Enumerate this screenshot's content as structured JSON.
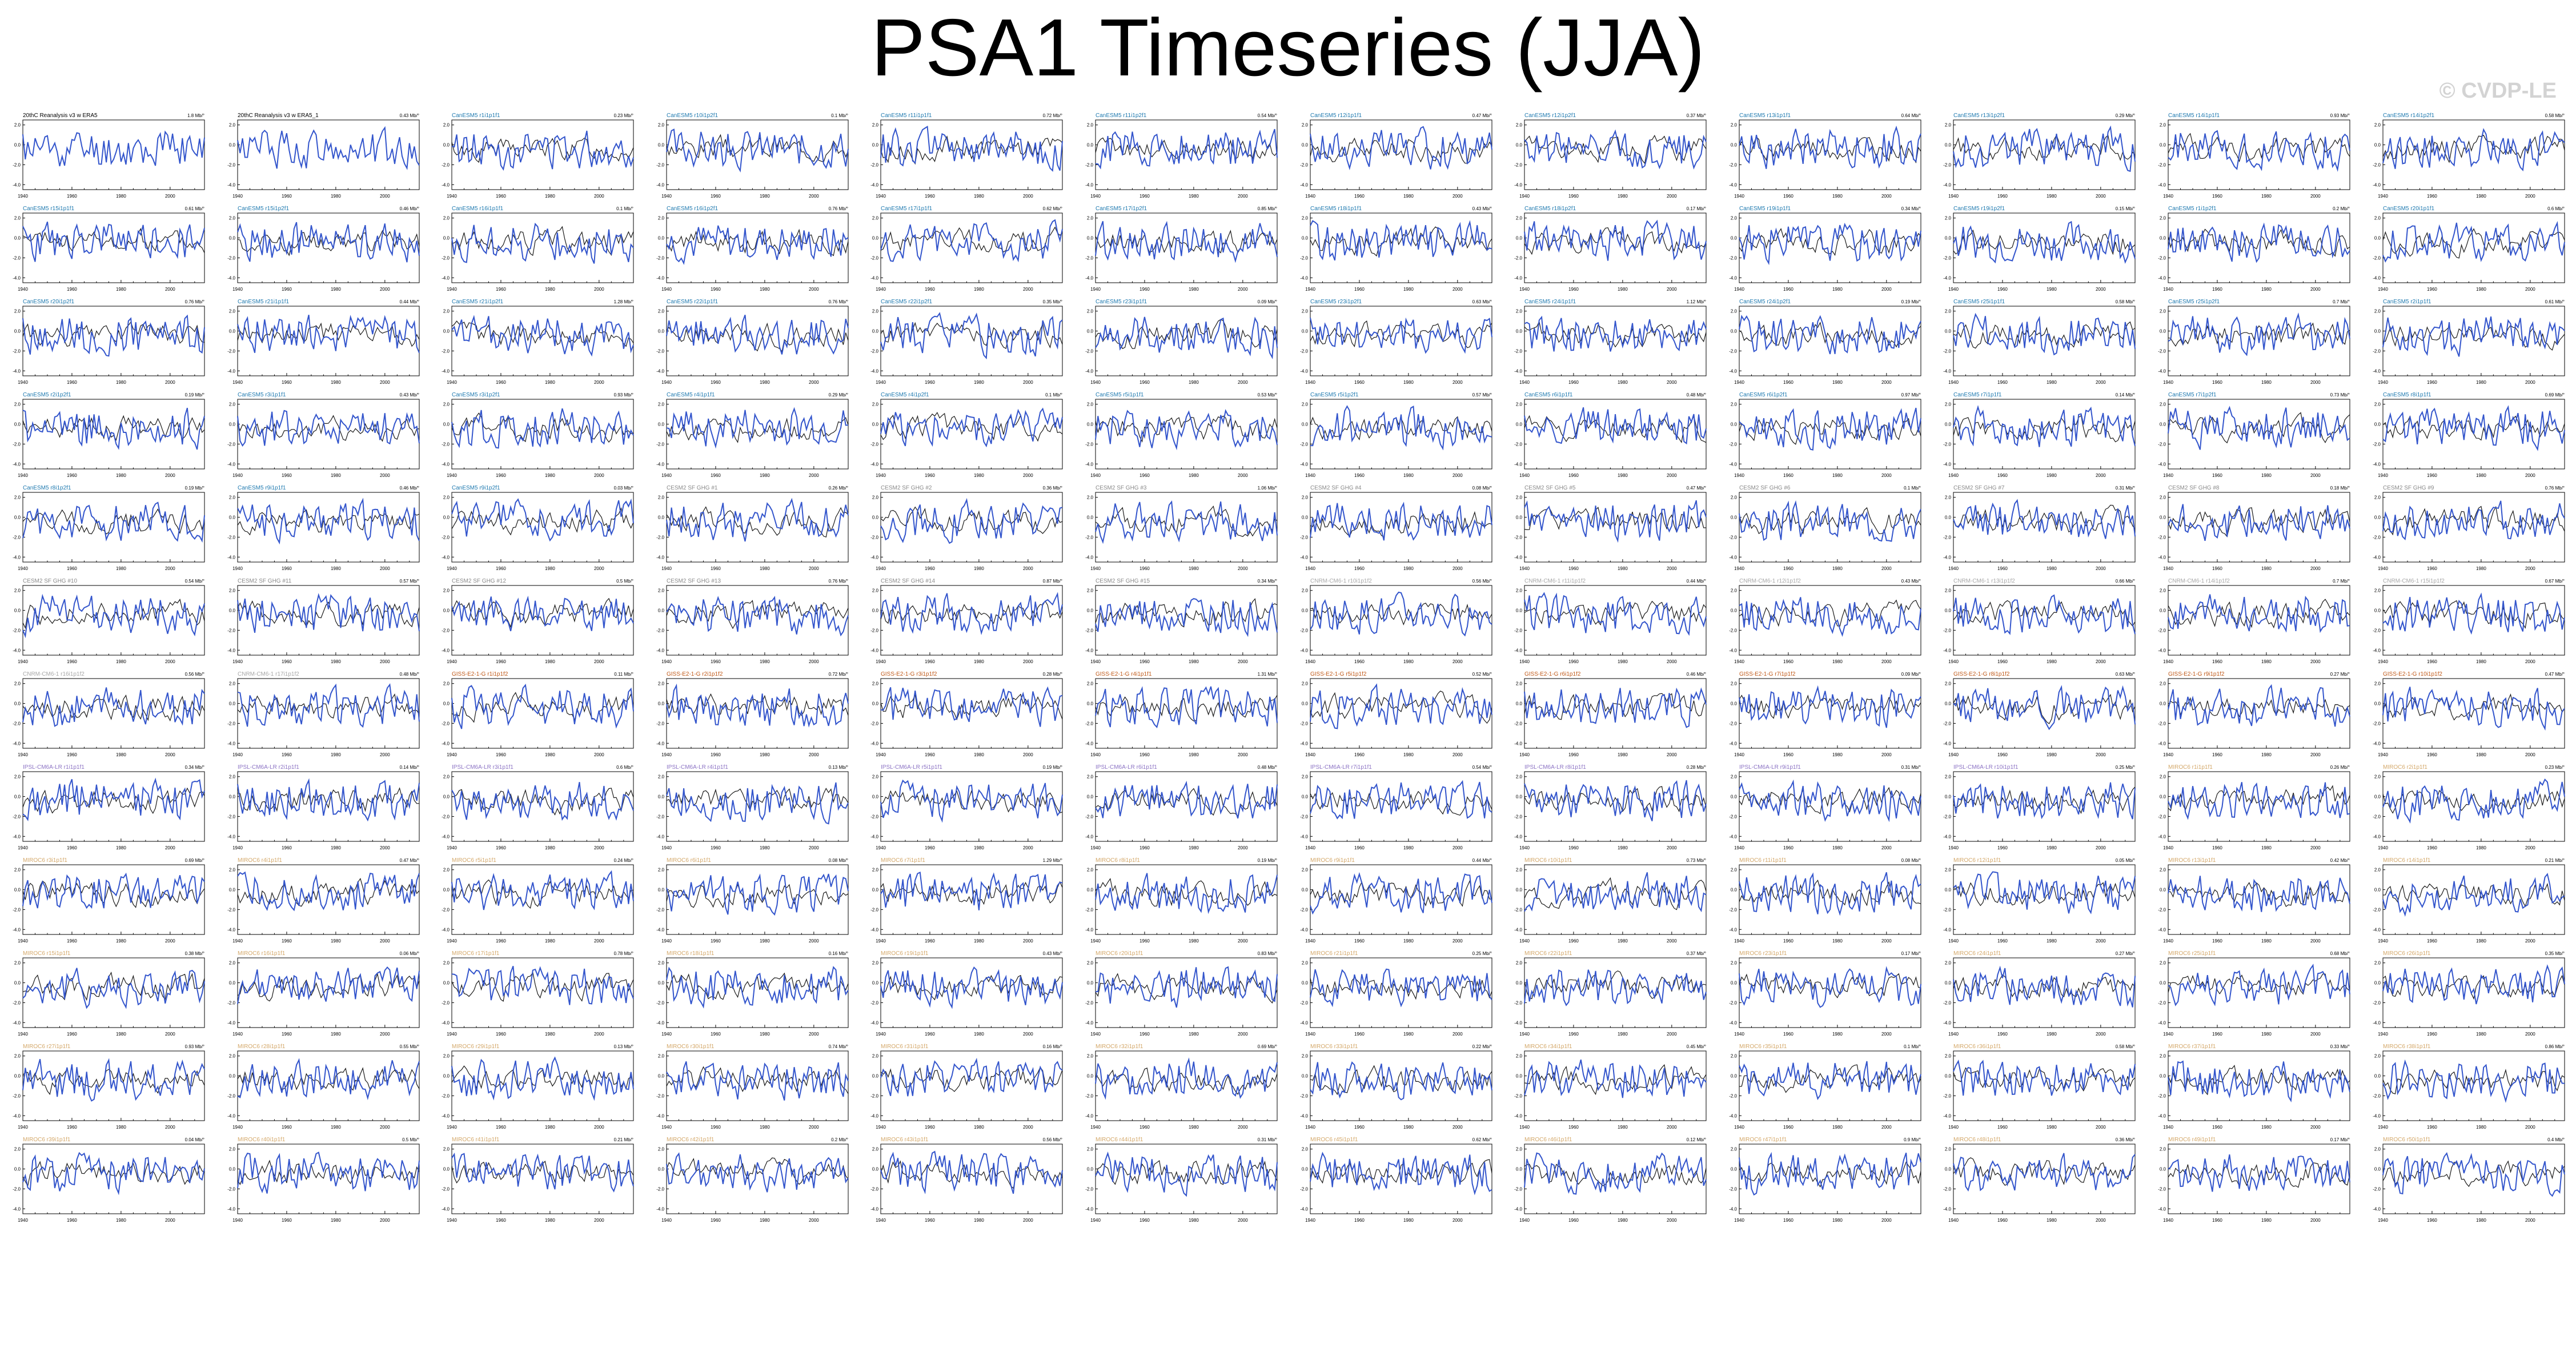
{
  "title": "PSA1 Timeseries (JJA)",
  "watermark": "© CVDP-LE",
  "colors": {
    "model_line": "#3355cc",
    "obs_line": "#1a1a1a",
    "obs_title": "#000000",
    "CanESM5": "#1f7ab0",
    "CESM2-SF-GHG": "#8a8a8a",
    "CNRM-CM6-1": "#a8a8a8",
    "GISS-E2-1-G": "#c05a1a",
    "IPSL-CM6A-LR": "#8c73c4",
    "MIROC6": "#d4a86a"
  },
  "chart_data": {
    "type": "line",
    "layout": {
      "rows": 13,
      "columns": 12,
      "last_row_columns": [
        5,
        6
      ]
    },
    "x_ticks": [
      1940,
      1960,
      1980,
      2000
    ],
    "y_ticks": [
      2.0,
      0.0,
      -2.0,
      -4.0
    ],
    "xlim": [
      1940,
      2014
    ],
    "ylim": [
      -4.5,
      2.5
    ],
    "series_legend": [
      {
        "name": "",
        "color": "#3355cc"
      },
      {
        "name": "",
        "color": "#1a1a1a"
      }
    ],
    "panels": [
      {
        "title": "20thC Reanalysis v3 w ERA5",
        "trend": "1.8 Mb/°",
        "group": "obs"
      },
      {
        "title": "20thC Reanalysis v3 w ERA5_1",
        "trend": "0.43 Mb/°",
        "group": "obs"
      },
      {
        "title": "CanESM5 r1i1p1f1",
        "trend": "0.23 Mb/°",
        "group": "CanESM5"
      },
      {
        "title": "CanESM5 r10i1p2f1",
        "trend": "0.1 Mb/°",
        "group": "CanESM5"
      },
      {
        "title": "CanESM5 r11i1p1f1",
        "trend": "0.72 Mb/°",
        "group": "CanESM5"
      },
      {
        "title": "CanESM5 r11i1p2f1",
        "trend": "0.54 Mb/°",
        "group": "CanESM5"
      },
      {
        "title": "CanESM5 r12i1p1f1",
        "trend": "0.47 Mb/°",
        "group": "CanESM5"
      },
      {
        "title": "CanESM5 r12i1p2f1",
        "trend": "0.37 Mb/°",
        "group": "CanESM5"
      },
      {
        "title": "CanESM5 r13i1p1f1",
        "trend": "0.64 Mb/°",
        "group": "CanESM5"
      },
      {
        "title": "CanESM5 r13i1p2f1",
        "trend": "0.29 Mb/°",
        "group": "CanESM5"
      },
      {
        "title": "CanESM5 r14i1p1f1",
        "trend": "0.93 Mb/°",
        "group": "CanESM5"
      },
      {
        "title": "CanESM5 r14i1p2f1",
        "trend": "0.58 Mb/°",
        "group": "CanESM5"
      },
      {
        "title": "CanESM5 r15i1p1f1",
        "trend": "0.61 Mb/°",
        "group": "CanESM5"
      },
      {
        "title": "CanESM5 r15i1p2f1",
        "trend": "0.46 Mb/°",
        "group": "CanESM5"
      },
      {
        "title": "CanESM5 r16i1p1f1",
        "trend": "0.1 Mb/°",
        "group": "CanESM5"
      },
      {
        "title": "CanESM5 r16i1p2f1",
        "trend": "0.76 Mb/°",
        "group": "CanESM5"
      },
      {
        "title": "CanESM5 r17i1p1f1",
        "trend": "0.62 Mb/°",
        "group": "CanESM5"
      },
      {
        "title": "CanESM5 r17i1p2f1",
        "trend": "0.85 Mb/°",
        "group": "CanESM5"
      },
      {
        "title": "CanESM5 r18i1p1f1",
        "trend": "0.43 Mb/°",
        "group": "CanESM5"
      },
      {
        "title": "CanESM5 r18i1p2f1",
        "trend": "0.17 Mb/°",
        "group": "CanESM5"
      },
      {
        "title": "CanESM5 r19i1p1f1",
        "trend": "0.34 Mb/°",
        "group": "CanESM5"
      },
      {
        "title": "CanESM5 r19i1p2f1",
        "trend": "0.15 Mb/°",
        "group": "CanESM5"
      },
      {
        "title": "CanESM5 r1i1p2f1",
        "trend": "0.2 Mb/°",
        "group": "CanESM5"
      },
      {
        "title": "CanESM5 r20i1p1f1",
        "trend": "0.6 Mb/°",
        "group": "CanESM5"
      },
      {
        "title": "CanESM5 r20i1p2f1",
        "trend": "0.76 Mb/°",
        "group": "CanESM5"
      },
      {
        "title": "CanESM5 r21i1p1f1",
        "trend": "0.44 Mb/°",
        "group": "CanESM5"
      },
      {
        "title": "CanESM5 r21i1p2f1",
        "trend": "1.28 Mb/°",
        "group": "CanESM5"
      },
      {
        "title": "CanESM5 r22i1p1f1",
        "trend": "0.76 Mb/°",
        "group": "CanESM5"
      },
      {
        "title": "CanESM5 r22i1p2f1",
        "trend": "0.35 Mb/°",
        "group": "CanESM5"
      },
      {
        "title": "CanESM5 r23i1p1f1",
        "trend": "0.09 Mb/°",
        "group": "CanESM5"
      },
      {
        "title": "CanESM5 r23i1p2f1",
        "trend": "0.63 Mb/°",
        "group": "CanESM5"
      },
      {
        "title": "CanESM5 r24i1p1f1",
        "trend": "1.12 Mb/°",
        "group": "CanESM5"
      },
      {
        "title": "CanESM5 r24i1p2f1",
        "trend": "0.19 Mb/°",
        "group": "CanESM5"
      },
      {
        "title": "CanESM5 r25i1p1f1",
        "trend": "0.58 Mb/°",
        "group": "CanESM5"
      },
      {
        "title": "CanESM5 r25i1p2f1",
        "trend": "0.7 Mb/°",
        "group": "CanESM5"
      },
      {
        "title": "CanESM5 r2i1p1f1",
        "trend": "0.61 Mb/°",
        "group": "CanESM5"
      },
      {
        "title": "CanESM5 r2i1p2f1",
        "trend": "0.19 Mb/°",
        "group": "CanESM5"
      },
      {
        "title": "CanESM5 r3i1p1f1",
        "trend": "0.43 Mb/°",
        "group": "CanESM5"
      },
      {
        "title": "CanESM5 r3i1p2f1",
        "trend": "0.93 Mb/°",
        "group": "CanESM5"
      },
      {
        "title": "CanESM5 r4i1p1f1",
        "trend": "0.29 Mb/°",
        "group": "CanESM5"
      },
      {
        "title": "CanESM5 r4i1p2f1",
        "trend": "0.1 Mb/°",
        "group": "CanESM5"
      },
      {
        "title": "CanESM5 r5i1p1f1",
        "trend": "0.53 Mb/°",
        "group": "CanESM5"
      },
      {
        "title": "CanESM5 r5i1p2f1",
        "trend": "0.57 Mb/°",
        "group": "CanESM5"
      },
      {
        "title": "CanESM5 r6i1p1f1",
        "trend": "0.48 Mb/°",
        "group": "CanESM5"
      },
      {
        "title": "CanESM5 r6i1p2f1",
        "trend": "0.97 Mb/°",
        "group": "CanESM5"
      },
      {
        "title": "CanESM5 r7i1p1f1",
        "trend": "0.14 Mb/°",
        "group": "CanESM5"
      },
      {
        "title": "CanESM5 r7i1p2f1",
        "trend": "0.73 Mb/°",
        "group": "CanESM5"
      },
      {
        "title": "CanESM5 r8i1p1f1",
        "trend": "0.69 Mb/°",
        "group": "CanESM5"
      },
      {
        "title": "CanESM5 r8i1p2f1",
        "trend": "0.19 Mb/°",
        "group": "CanESM5"
      },
      {
        "title": "CanESM5 r9i1p1f1",
        "trend": "0.46 Mb/°",
        "group": "CanESM5"
      },
      {
        "title": "CanESM5 r9i1p2f1",
        "trend": "0.03 Mb/°",
        "group": "CanESM5"
      },
      {
        "title": "CESM2 SF GHG #1",
        "trend": "0.26 Mb/°",
        "group": "CESM2-SF-GHG"
      },
      {
        "title": "CESM2 SF GHG #2",
        "trend": "0.36 Mb/°",
        "group": "CESM2-SF-GHG"
      },
      {
        "title": "CESM2 SF GHG #3",
        "trend": "1.06 Mb/°",
        "group": "CESM2-SF-GHG"
      },
      {
        "title": "CESM2 SF GHG #4",
        "trend": "0.08 Mb/°",
        "group": "CESM2-SF-GHG"
      },
      {
        "title": "CESM2 SF GHG #5",
        "trend": "0.47 Mb/°",
        "group": "CESM2-SF-GHG"
      },
      {
        "title": "CESM2 SF GHG #6",
        "trend": "0.1 Mb/°",
        "group": "CESM2-SF-GHG"
      },
      {
        "title": "CESM2 SF GHG #7",
        "trend": "0.31 Mb/°",
        "group": "CESM2-SF-GHG"
      },
      {
        "title": "CESM2 SF GHG #8",
        "trend": "0.18 Mb/°",
        "group": "CESM2-SF-GHG"
      },
      {
        "title": "CESM2 SF GHG #9",
        "trend": "0.76 Mb/°",
        "group": "CESM2-SF-GHG"
      },
      {
        "title": "CESM2 SF GHG #10",
        "trend": "0.54 Mb/°",
        "group": "CESM2-SF-GHG"
      },
      {
        "title": "CESM2 SF GHG #11",
        "trend": "0.57 Mb/°",
        "group": "CESM2-SF-GHG"
      },
      {
        "title": "CESM2 SF GHG #12",
        "trend": "0.5 Mb/°",
        "group": "CESM2-SF-GHG"
      },
      {
        "title": "CESM2 SF GHG #13",
        "trend": "0.76 Mb/°",
        "group": "CESM2-SF-GHG"
      },
      {
        "title": "CESM2 SF GHG #14",
        "trend": "0.87 Mb/°",
        "group": "CESM2-SF-GHG"
      },
      {
        "title": "CESM2 SF GHG #15",
        "trend": "0.34 Mb/°",
        "group": "CESM2-SF-GHG"
      },
      {
        "title": "CNRM-CM6-1 r10i1p1f2",
        "trend": "0.56 Mb/°",
        "group": "CNRM-CM6-1"
      },
      {
        "title": "CNRM-CM6-1 r11i1p1f2",
        "trend": "0.44 Mb/°",
        "group": "CNRM-CM6-1"
      },
      {
        "title": "CNRM-CM6-1 r12i1p1f2",
        "trend": "0.43 Mb/°",
        "group": "CNRM-CM6-1"
      },
      {
        "title": "CNRM-CM6-1 r13i1p1f2",
        "trend": "0.66 Mb/°",
        "group": "CNRM-CM6-1"
      },
      {
        "title": "CNRM-CM6-1 r14i1p1f2",
        "trend": "0.7 Mb/°",
        "group": "CNRM-CM6-1"
      },
      {
        "title": "CNRM-CM6-1 r15i1p1f2",
        "trend": "0.67 Mb/°",
        "group": "CNRM-CM6-1"
      },
      {
        "title": "CNRM-CM6-1 r16i1p1f2",
        "trend": "0.56 Mb/°",
        "group": "CNRM-CM6-1"
      },
      {
        "title": "CNRM-CM6-1 r17i1p1f2",
        "trend": "0.48 Mb/°",
        "group": "CNRM-CM6-1"
      },
      {
        "title": "GISS-E2-1-G r1i1p1f2",
        "trend": "0.11 Mb/°",
        "group": "GISS-E2-1-G"
      },
      {
        "title": "GISS-E2-1-G r2i1p1f2",
        "trend": "0.72 Mb/°",
        "group": "GISS-E2-1-G"
      },
      {
        "title": "GISS-E2-1-G r3i1p1f2",
        "trend": "0.28 Mb/°",
        "group": "GISS-E2-1-G"
      },
      {
        "title": "GISS-E2-1-G r4i1p1f1",
        "trend": "1.31 Mb/°",
        "group": "GISS-E2-1-G"
      },
      {
        "title": "GISS-E2-1-G r5i1p1f2",
        "trend": "0.52 Mb/°",
        "group": "GISS-E2-1-G"
      },
      {
        "title": "GISS-E2-1-G r6i1p1f2",
        "trend": "0.46 Mb/°",
        "group": "GISS-E2-1-G"
      },
      {
        "title": "GISS-E2-1-G r7i1p1f2",
        "trend": "0.09 Mb/°",
        "group": "GISS-E2-1-G"
      },
      {
        "title": "GISS-E2-1-G r8i1p1f2",
        "trend": "0.63 Mb/°",
        "group": "GISS-E2-1-G"
      },
      {
        "title": "GISS-E2-1-G r9i1p1f2",
        "trend": "0.27 Mb/°",
        "group": "GISS-E2-1-G"
      },
      {
        "title": "GISS-E2-1-G r10i1p1f2",
        "trend": "0.47 Mb/°",
        "group": "GISS-E2-1-G"
      },
      {
        "title": "IPSL-CM6A-LR r1i1p1f1",
        "trend": "0.34 Mb/°",
        "group": "IPSL-CM6A-LR"
      },
      {
        "title": "IPSL-CM6A-LR r2i1p1f1",
        "trend": "0.14 Mb/°",
        "group": "IPSL-CM6A-LR"
      },
      {
        "title": "IPSL-CM6A-LR r3i1p1f1",
        "trend": "0.6 Mb/°",
        "group": "IPSL-CM6A-LR"
      },
      {
        "title": "IPSL-CM6A-LR r4i1p1f1",
        "trend": "0.13 Mb/°",
        "group": "IPSL-CM6A-LR"
      },
      {
        "title": "IPSL-CM6A-LR r5i1p1f1",
        "trend": "0.19 Mb/°",
        "group": "IPSL-CM6A-LR"
      },
      {
        "title": "IPSL-CM6A-LR r6i1p1f1",
        "trend": "0.48 Mb/°",
        "group": "IPSL-CM6A-LR"
      },
      {
        "title": "IPSL-CM6A-LR r7i1p1f1",
        "trend": "0.54 Mb/°",
        "group": "IPSL-CM6A-LR"
      },
      {
        "title": "IPSL-CM6A-LR r8i1p1f1",
        "trend": "0.28 Mb/°",
        "group": "IPSL-CM6A-LR"
      },
      {
        "title": "IPSL-CM6A-LR r9i1p1f1",
        "trend": "0.31 Mb/°",
        "group": "IPSL-CM6A-LR"
      },
      {
        "title": "IPSL-CM6A-LR r10i1p1f1",
        "trend": "0.25 Mb/°",
        "group": "IPSL-CM6A-LR"
      },
      {
        "title": "MIROC6 r1i1p1f1",
        "trend": "0.26 Mb/°",
        "group": "MIROC6"
      },
      {
        "title": "MIROC6 r2i1p1f1",
        "trend": "0.23 Mb/°",
        "group": "MIROC6"
      },
      {
        "title": "MIROC6 r3i1p1f1",
        "trend": "0.69 Mb/°",
        "group": "MIROC6"
      },
      {
        "title": "MIROC6 r4i1p1f1",
        "trend": "0.47 Mb/°",
        "group": "MIROC6"
      },
      {
        "title": "MIROC6 r5i1p1f1",
        "trend": "0.24 Mb/°",
        "group": "MIROC6"
      },
      {
        "title": "MIROC6 r6i1p1f1",
        "trend": "0.08 Mb/°",
        "group": "MIROC6"
      },
      {
        "title": "MIROC6 r7i1p1f1",
        "trend": "1.29 Mb/°",
        "group": "MIROC6"
      },
      {
        "title": "MIROC6 r8i1p1f1",
        "trend": "0.19 Mb/°",
        "group": "MIROC6"
      },
      {
        "title": "MIROC6 r9i1p1f1",
        "trend": "0.44 Mb/°",
        "group": "MIROC6"
      },
      {
        "title": "MIROC6 r10i1p1f1",
        "trend": "0.73 Mb/°",
        "group": "MIROC6"
      },
      {
        "title": "MIROC6 r11i1p1f1",
        "trend": "0.08 Mb/°",
        "group": "MIROC6"
      },
      {
        "title": "MIROC6 r12i1p1f1",
        "trend": "0.05 Mb/°",
        "group": "MIROC6"
      },
      {
        "title": "MIROC6 r13i1p1f1",
        "trend": "0.42 Mb/°",
        "group": "MIROC6"
      },
      {
        "title": "MIROC6 r14i1p1f1",
        "trend": "0.21 Mb/°",
        "group": "MIROC6"
      },
      {
        "title": "MIROC6 r15i1p1f1",
        "trend": "0.38 Mb/°",
        "group": "MIROC6"
      },
      {
        "title": "MIROC6 r16i1p1f1",
        "trend": "0.06 Mb/°",
        "group": "MIROC6"
      },
      {
        "title": "MIROC6 r17i1p1f1",
        "trend": "0.78 Mb/°",
        "group": "MIROC6"
      },
      {
        "title": "MIROC6 r18i1p1f1",
        "trend": "0.16 Mb/°",
        "group": "MIROC6"
      },
      {
        "title": "MIROC6 r19i1p1f1",
        "trend": "0.43 Mb/°",
        "group": "MIROC6"
      },
      {
        "title": "MIROC6 r20i1p1f1",
        "trend": "0.83 Mb/°",
        "group": "MIROC6"
      },
      {
        "title": "MIROC6 r21i1p1f1",
        "trend": "0.25 Mb/°",
        "group": "MIROC6"
      },
      {
        "title": "MIROC6 r22i1p1f1",
        "trend": "0.37 Mb/°",
        "group": "MIROC6"
      },
      {
        "title": "MIROC6 r23i1p1f1",
        "trend": "0.17 Mb/°",
        "group": "MIROC6"
      },
      {
        "title": "MIROC6 r24i1p1f1",
        "trend": "0.27 Mb/°",
        "group": "MIROC6"
      },
      {
        "title": "MIROC6 r25i1p1f1",
        "trend": "0.68 Mb/°",
        "group": "MIROC6"
      },
      {
        "title": "MIROC6 r26i1p1f1",
        "trend": "0.35 Mb/°",
        "group": "MIROC6"
      },
      {
        "title": "MIROC6 r27i1p1f1",
        "trend": "0.93 Mb/°",
        "group": "MIROC6"
      },
      {
        "title": "MIROC6 r28i1p1f1",
        "trend": "0.55 Mb/°",
        "group": "MIROC6"
      },
      {
        "title": "MIROC6 r29i1p1f1",
        "trend": "0.13 Mb/°",
        "group": "MIROC6"
      },
      {
        "title": "MIROC6 r30i1p1f1",
        "trend": "0.74 Mb/°",
        "group": "MIROC6"
      },
      {
        "title": "MIROC6 r31i1p1f1",
        "trend": "0.16 Mb/°",
        "group": "MIROC6"
      },
      {
        "title": "MIROC6 r32i1p1f1",
        "trend": "0.69 Mb/°",
        "group": "MIROC6"
      },
      {
        "title": "MIROC6 r33i1p1f1",
        "trend": "0.22 Mb/°",
        "group": "MIROC6"
      },
      {
        "title": "MIROC6 r34i1p1f1",
        "trend": "0.45 Mb/°",
        "group": "MIROC6"
      },
      {
        "title": "MIROC6 r35i1p1f1",
        "trend": "0.1 Mb/°",
        "group": "MIROC6"
      },
      {
        "title": "MIROC6 r36i1p1f1",
        "trend": "0.58 Mb/°",
        "group": "MIROC6"
      },
      {
        "title": "MIROC6 r37i1p1f1",
        "trend": "0.33 Mb/°",
        "group": "MIROC6"
      },
      {
        "title": "MIROC6 r38i1p1f1",
        "trend": "0.86 Mb/°",
        "group": "MIROC6"
      },
      {
        "title": "MIROC6 r39i1p1f1",
        "trend": "0.04 Mb/°",
        "group": "MIROC6"
      },
      {
        "title": "MIROC6 r40i1p1f1",
        "trend": "0.5 Mb/°",
        "group": "MIROC6"
      },
      {
        "title": "MIROC6 r41i1p1f1",
        "trend": "0.21 Mb/°",
        "group": "MIROC6"
      },
      {
        "title": "MIROC6 r42i1p1f1",
        "trend": "0.2 Mb/°",
        "group": "MIROC6"
      },
      {
        "title": "MIROC6 r43i1p1f1",
        "trend": "0.56 Mb/°",
        "group": "MIROC6"
      },
      {
        "title": "MIROC6 r44i1p1f1",
        "trend": "0.31 Mb/°",
        "group": "MIROC6"
      },
      {
        "title": "MIROC6 r45i1p1f1",
        "trend": "0.62 Mb/°",
        "group": "MIROC6"
      },
      {
        "title": "MIROC6 r46i1p1f1",
        "trend": "0.12 Mb/°",
        "group": "MIROC6"
      },
      {
        "title": "MIROC6 r47i1p1f1",
        "trend": "0.9 Mb/°",
        "group": "MIROC6"
      },
      {
        "title": "MIROC6 r48i1p1f1",
        "trend": "0.36 Mb/°",
        "group": "MIROC6"
      },
      {
        "title": "MIROC6 r49i1p1f1",
        "trend": "0.17 Mb/°",
        "group": "MIROC6"
      },
      {
        "title": "MIROC6 r50i1p1f1",
        "trend": "0.4 Mb/°",
        "group": "MIROC6"
      }
    ]
  }
}
